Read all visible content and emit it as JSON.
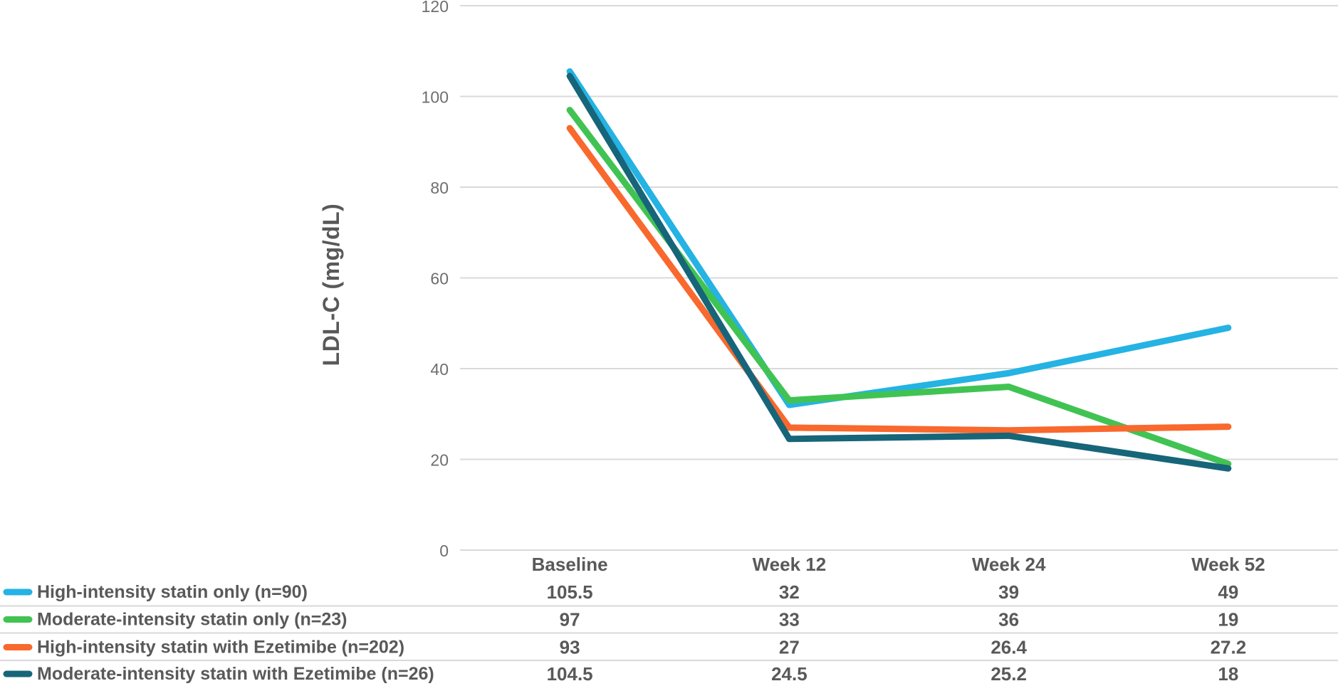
{
  "chart_data": {
    "type": "line",
    "title": "",
    "ylabel": "LDL-C (mg/dL)",
    "categories": [
      "Baseline",
      "Week 12",
      "Week 24",
      "Week 52"
    ],
    "series": [
      {
        "name": "High-intensity statin only (n=90)",
        "color": "#24B3E3",
        "values": [
          105.5,
          32,
          39,
          49
        ]
      },
      {
        "name": "Moderate-intensity statin only (n=23)",
        "color": "#41C353",
        "values": [
          97,
          33,
          36,
          19
        ]
      },
      {
        "name": "High-intensity statin with Ezetimibe (n=202)",
        "color": "#F9682D",
        "values": [
          93,
          27,
          26.4,
          27.2
        ]
      },
      {
        "name": "Moderate-intensity statin with Ezetimibe (n=26)",
        "color": "#176579",
        "values": [
          104.5,
          24.5,
          25.2,
          18
        ]
      }
    ],
    "y_ticks": [
      0,
      20,
      40,
      60,
      80,
      100,
      120
    ],
    "ylim": [
      0,
      120
    ],
    "grid": true,
    "legend_position": "data-table-left",
    "table_values": [
      [
        "105.5",
        "32",
        "39",
        "49"
      ],
      [
        "97",
        "33",
        "36",
        "19"
      ],
      [
        "93",
        "27",
        "26.4",
        "27.2"
      ],
      [
        "104.5",
        "24.5",
        "25.2",
        "18"
      ]
    ],
    "colors": {
      "gridline": "#D9D9D9",
      "tick_label": "#6E6E6E",
      "text": "#595959",
      "background": "#FFFFFF"
    }
  }
}
